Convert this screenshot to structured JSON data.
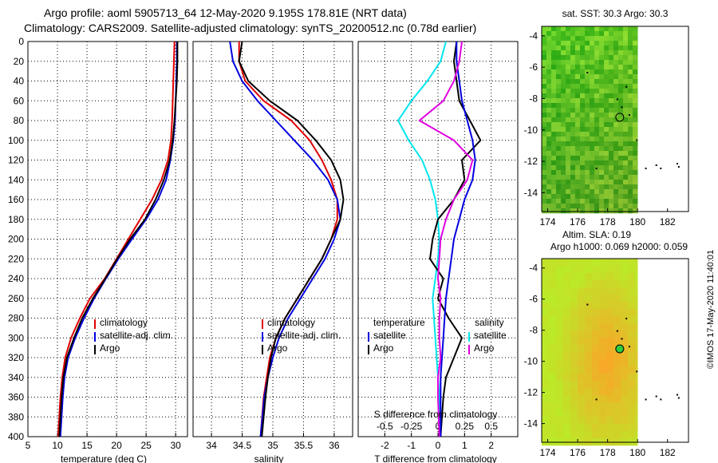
{
  "header": {
    "line1": "Argo profile: aoml 5905713_64 12-May-2020 9.195S 178.81E (NRT data)",
    "line2": "Climatology: CARS2009. Satellite-adjusted climatology: synTS_20200512.nc (0.78d earlier)"
  },
  "colors": {
    "climatology": "#e00000",
    "satellite": "#0000e0",
    "argo": "#000000",
    "sat_temp": "#00e5ee",
    "sat_sal": "#e000e0"
  },
  "credit": "©IMOS 17-May-2020 11:40:01",
  "chart_data": [
    {
      "type": "line",
      "id": "temperature",
      "xlabel": "temperature (deg C)",
      "xlim": [
        5,
        32
      ],
      "xticks": [
        5,
        10,
        15,
        20,
        25,
        30
      ],
      "ylim": [
        0,
        400
      ],
      "yticks": [
        0,
        20,
        40,
        60,
        80,
        100,
        120,
        140,
        160,
        180,
        200,
        220,
        240,
        260,
        280,
        300,
        320,
        340,
        360,
        380,
        400
      ],
      "legend": [
        "climatology",
        "satellite-adj. clim.",
        "Argo"
      ],
      "series": [
        {
          "name": "climatology",
          "color": "#e00000",
          "x": [
            29.8,
            29.7,
            29.6,
            29.5,
            29.4,
            29.2,
            28.7,
            27.6,
            26.0,
            24.0,
            22.0,
            20.0,
            18.0,
            15.5,
            13.8,
            12.3,
            11.3,
            10.8,
            10.5,
            10.1
          ],
          "y": [
            0,
            20,
            40,
            60,
            80,
            100,
            120,
            140,
            160,
            180,
            200,
            220,
            240,
            260,
            280,
            300,
            320,
            340,
            360,
            400
          ]
        },
        {
          "name": "satellite",
          "color": "#0000e0",
          "x": [
            30.2,
            30.2,
            30.1,
            30.0,
            29.9,
            29.6,
            29.1,
            28.4,
            27.0,
            25.0,
            22.6,
            20.3,
            18.2,
            16.2,
            14.5,
            13.0,
            11.8,
            11.2,
            10.9,
            10.5
          ],
          "y": [
            0,
            20,
            40,
            60,
            80,
            100,
            120,
            140,
            160,
            180,
            200,
            220,
            240,
            260,
            280,
            300,
            320,
            340,
            360,
            400
          ]
        },
        {
          "name": "Argo",
          "color": "#000000",
          "x": [
            30.3,
            30.3,
            30.2,
            30.0,
            29.8,
            29.5,
            29.0,
            28.0,
            26.6,
            24.8,
            22.3,
            20.1,
            18.1,
            16.0,
            14.2,
            12.8,
            11.6,
            11.0,
            10.7,
            10.3
          ],
          "y": [
            0,
            20,
            40,
            60,
            80,
            100,
            120,
            140,
            160,
            180,
            200,
            220,
            240,
            260,
            280,
            300,
            320,
            340,
            360,
            400
          ]
        }
      ]
    },
    {
      "type": "line",
      "id": "salinity",
      "xlabel": "salinity",
      "xlim": [
        33.7,
        36.3
      ],
      "xticks": [
        34,
        34.5,
        35,
        35.5,
        36
      ],
      "ylim": [
        0,
        400
      ],
      "legend": [
        "climatology",
        "satellite-adj. clim.",
        "Argo"
      ],
      "series": [
        {
          "name": "climatology",
          "color": "#e00000",
          "x": [
            34.45,
            34.45,
            34.55,
            34.85,
            35.3,
            35.6,
            35.8,
            35.95,
            36.05,
            36.05,
            35.95,
            35.8,
            35.6,
            35.4,
            35.2,
            35.05,
            34.95,
            34.9,
            34.85,
            34.8
          ],
          "y": [
            0,
            20,
            40,
            60,
            80,
            100,
            120,
            140,
            160,
            180,
            200,
            220,
            240,
            260,
            280,
            300,
            320,
            340,
            360,
            400
          ]
        },
        {
          "name": "satellite",
          "color": "#0000e0",
          "x": [
            34.3,
            34.35,
            34.5,
            34.75,
            35.05,
            35.35,
            35.65,
            35.9,
            36.05,
            36.1,
            36.0,
            35.85,
            35.65,
            35.45,
            35.25,
            35.1,
            35.0,
            34.92,
            34.86,
            34.8
          ],
          "y": [
            0,
            20,
            40,
            60,
            80,
            100,
            120,
            140,
            160,
            180,
            200,
            220,
            240,
            260,
            280,
            300,
            320,
            340,
            360,
            400
          ]
        },
        {
          "name": "Argo",
          "color": "#000000",
          "x": [
            34.5,
            34.45,
            34.6,
            34.95,
            35.4,
            35.7,
            35.95,
            36.1,
            36.15,
            36.1,
            35.95,
            35.8,
            35.6,
            35.4,
            35.2,
            35.05,
            34.97,
            34.92,
            34.88,
            34.82
          ],
          "y": [
            0,
            20,
            40,
            60,
            80,
            100,
            120,
            140,
            160,
            180,
            200,
            220,
            240,
            260,
            280,
            300,
            320,
            340,
            360,
            400
          ]
        }
      ]
    },
    {
      "type": "line",
      "id": "differences",
      "xlabel": "T difference from climatology",
      "xlabel_top": "S difference from climatology",
      "xlim": [
        -3,
        3
      ],
      "xticks": [
        -2,
        -1,
        0,
        1,
        2
      ],
      "xticks_top_labels": [
        "-0.5",
        "-0.25",
        "0",
        "0.25",
        "0.5"
      ],
      "ylim": [
        0,
        400
      ],
      "legend": {
        "temperature_title": "temperature",
        "salinity_title": "salinity",
        "t_items": [
          "satellite",
          "Argo"
        ],
        "s_items": [
          "satellite",
          "Argo"
        ]
      },
      "series": [
        {
          "name": "T satellite",
          "color": "#00e5ee",
          "x": [
            0.3,
            0.1,
            -0.4,
            -1.0,
            -1.5,
            -1.1,
            -0.6,
            -0.3,
            -0.1,
            0.0,
            0.05,
            0.0,
            -0.1,
            -0.2,
            -0.15,
            -0.1,
            -0.05,
            0.0,
            0.05,
            0.05
          ],
          "y": [
            0,
            20,
            40,
            60,
            80,
            100,
            120,
            140,
            160,
            180,
            200,
            220,
            240,
            260,
            280,
            300,
            320,
            340,
            360,
            400
          ]
        },
        {
          "name": "T Argo",
          "color": "#000000",
          "x": [
            0.7,
            0.6,
            0.7,
            0.8,
            1.2,
            1.6,
            0.9,
            1.0,
            0.6,
            0.0,
            -0.2,
            -0.3,
            0.2,
            0.0,
            0.4,
            0.9,
            0.6,
            0.3,
            0.2,
            0.1
          ],
          "y": [
            0,
            20,
            40,
            60,
            80,
            100,
            120,
            140,
            160,
            180,
            200,
            220,
            240,
            260,
            280,
            300,
            320,
            340,
            360,
            400
          ]
        },
        {
          "name": "S satellite",
          "color": "#0000e0",
          "x": [
            0.7,
            0.7,
            0.8,
            0.9,
            1.1,
            1.3,
            1.4,
            1.3,
            1.0,
            0.8,
            0.6,
            0.5,
            0.4,
            0.3,
            0.25,
            0.2,
            0.15,
            0.1,
            0.1,
            0.1
          ],
          "y": [
            0,
            20,
            40,
            60,
            80,
            100,
            120,
            140,
            160,
            180,
            200,
            220,
            240,
            260,
            280,
            300,
            320,
            340,
            360,
            400
          ]
        },
        {
          "name": "S Argo",
          "color": "#e000e0",
          "x": [
            0.9,
            0.8,
            0.6,
            0.2,
            -0.7,
            0.6,
            1.3,
            1.1,
            0.6,
            0.3,
            0.1,
            0.05,
            0.0,
            0.1,
            0.05,
            0.05,
            0.1,
            0.0,
            0.0,
            0.05
          ],
          "y": [
            0,
            20,
            40,
            60,
            80,
            100,
            120,
            140,
            160,
            180,
            200,
            220,
            240,
            260,
            280,
            300,
            320,
            340,
            360,
            400
          ]
        }
      ]
    },
    {
      "type": "heatmap",
      "id": "sst_map",
      "title": "sat. SST: 30.3 Argo: 30.3",
      "xticks": [
        174,
        176,
        178,
        180,
        182
      ],
      "yticks": [
        -4,
        -6,
        -8,
        -10,
        -12,
        -14
      ],
      "xlim": [
        173.6,
        183.4
      ],
      "ylim": [
        -15.2,
        -3.4
      ],
      "marker": {
        "lon": 178.81,
        "lat": -9.195,
        "filled": false
      }
    },
    {
      "type": "heatmap",
      "id": "sla_map",
      "title": "Altim. SLA: 0.19",
      "subtitle": "Argo h1000: 0.069 h2000: 0.059",
      "xticks": [
        174,
        176,
        178,
        180,
        182
      ],
      "yticks": [
        -4,
        -6,
        -8,
        -10,
        -12,
        -14
      ],
      "xlim": [
        173.6,
        183.4
      ],
      "ylim": [
        -15.2,
        -3.4
      ],
      "marker": {
        "lon": 178.81,
        "lat": -9.195,
        "filled": true
      }
    }
  ]
}
